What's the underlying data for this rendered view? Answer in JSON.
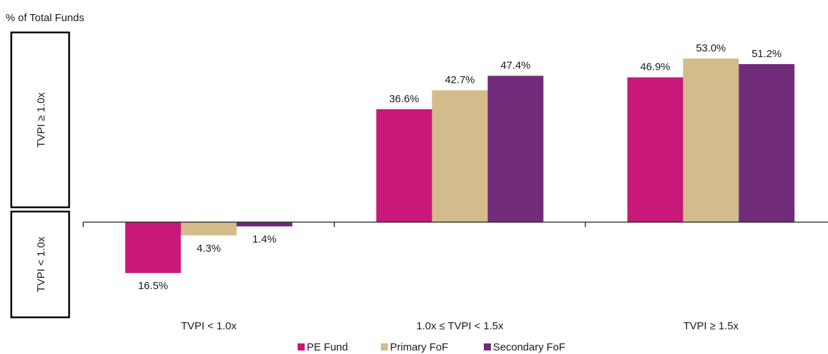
{
  "chart_data": {
    "type": "bar",
    "ylabel": "% of Total Funds",
    "categories": [
      "TVPI < 1.0x",
      "1.0x ≤ TVPI < 1.5x",
      "TVPI ≥ 1.5x"
    ],
    "side_labels": {
      "positive": "TVPI ≥ 1.0x",
      "negative": "TVPI < 1.0x"
    },
    "series": [
      {
        "name": "PE Fund",
        "color": "#c8197a",
        "values": [
          -16.5,
          36.6,
          46.9
        ],
        "labels": [
          "16.5%",
          "36.6%",
          "46.9%"
        ]
      },
      {
        "name": "Primary FoF",
        "color": "#d3bb8c",
        "values": [
          -4.3,
          42.7,
          53.0
        ],
        "labels": [
          "4.3%",
          "42.7%",
          "53.0%"
        ]
      },
      {
        "name": "Secondary FoF",
        "color": "#722a7a",
        "values": [
          -1.4,
          47.4,
          51.2
        ],
        "labels": [
          "1.4%",
          "47.4%",
          "51.2%"
        ]
      }
    ],
    "legend": {
      "position": "bottom"
    },
    "grid": false
  }
}
